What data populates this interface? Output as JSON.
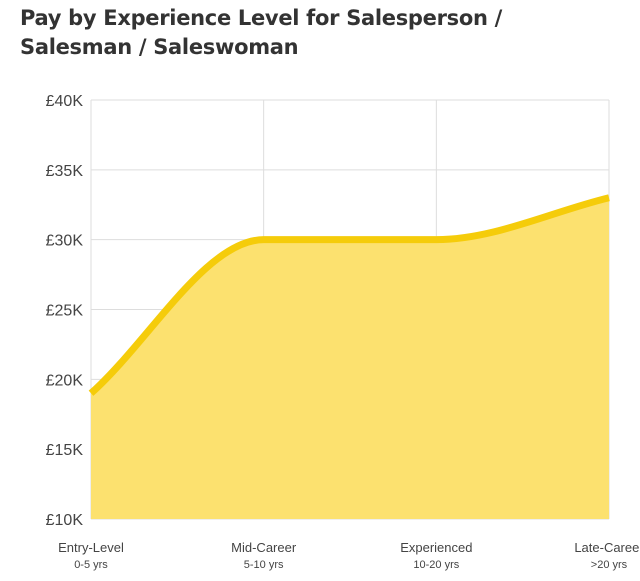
{
  "chart_data": {
    "type": "area",
    "title": "Pay by Experience Level for Salesperson / Salesman / Saleswoman",
    "xlabel": "",
    "ylabel": "",
    "categories": [
      {
        "label": "Entry-Level",
        "sub": "0-5 yrs"
      },
      {
        "label": "Mid-Career",
        "sub": "5-10 yrs"
      },
      {
        "label": "Experienced",
        "sub": "10-20 yrs"
      },
      {
        "label": "Late-Career",
        "sub": ">20 yrs"
      }
    ],
    "values": [
      19000,
      30000,
      30000,
      33000
    ],
    "ylim": [
      10000,
      40000
    ],
    "yticks": [
      {
        "value": 10000,
        "label": "£10K"
      },
      {
        "value": 15000,
        "label": "£15K"
      },
      {
        "value": 20000,
        "label": "£20K"
      },
      {
        "value": 25000,
        "label": "£25K"
      },
      {
        "value": 30000,
        "label": "£30K"
      },
      {
        "value": 35000,
        "label": "£35K"
      },
      {
        "value": 40000,
        "label": "£40K"
      }
    ],
    "grid": true,
    "colors": {
      "line": "#f5cc0a",
      "fill": "#fce16f",
      "grid": "#dddddd"
    }
  }
}
